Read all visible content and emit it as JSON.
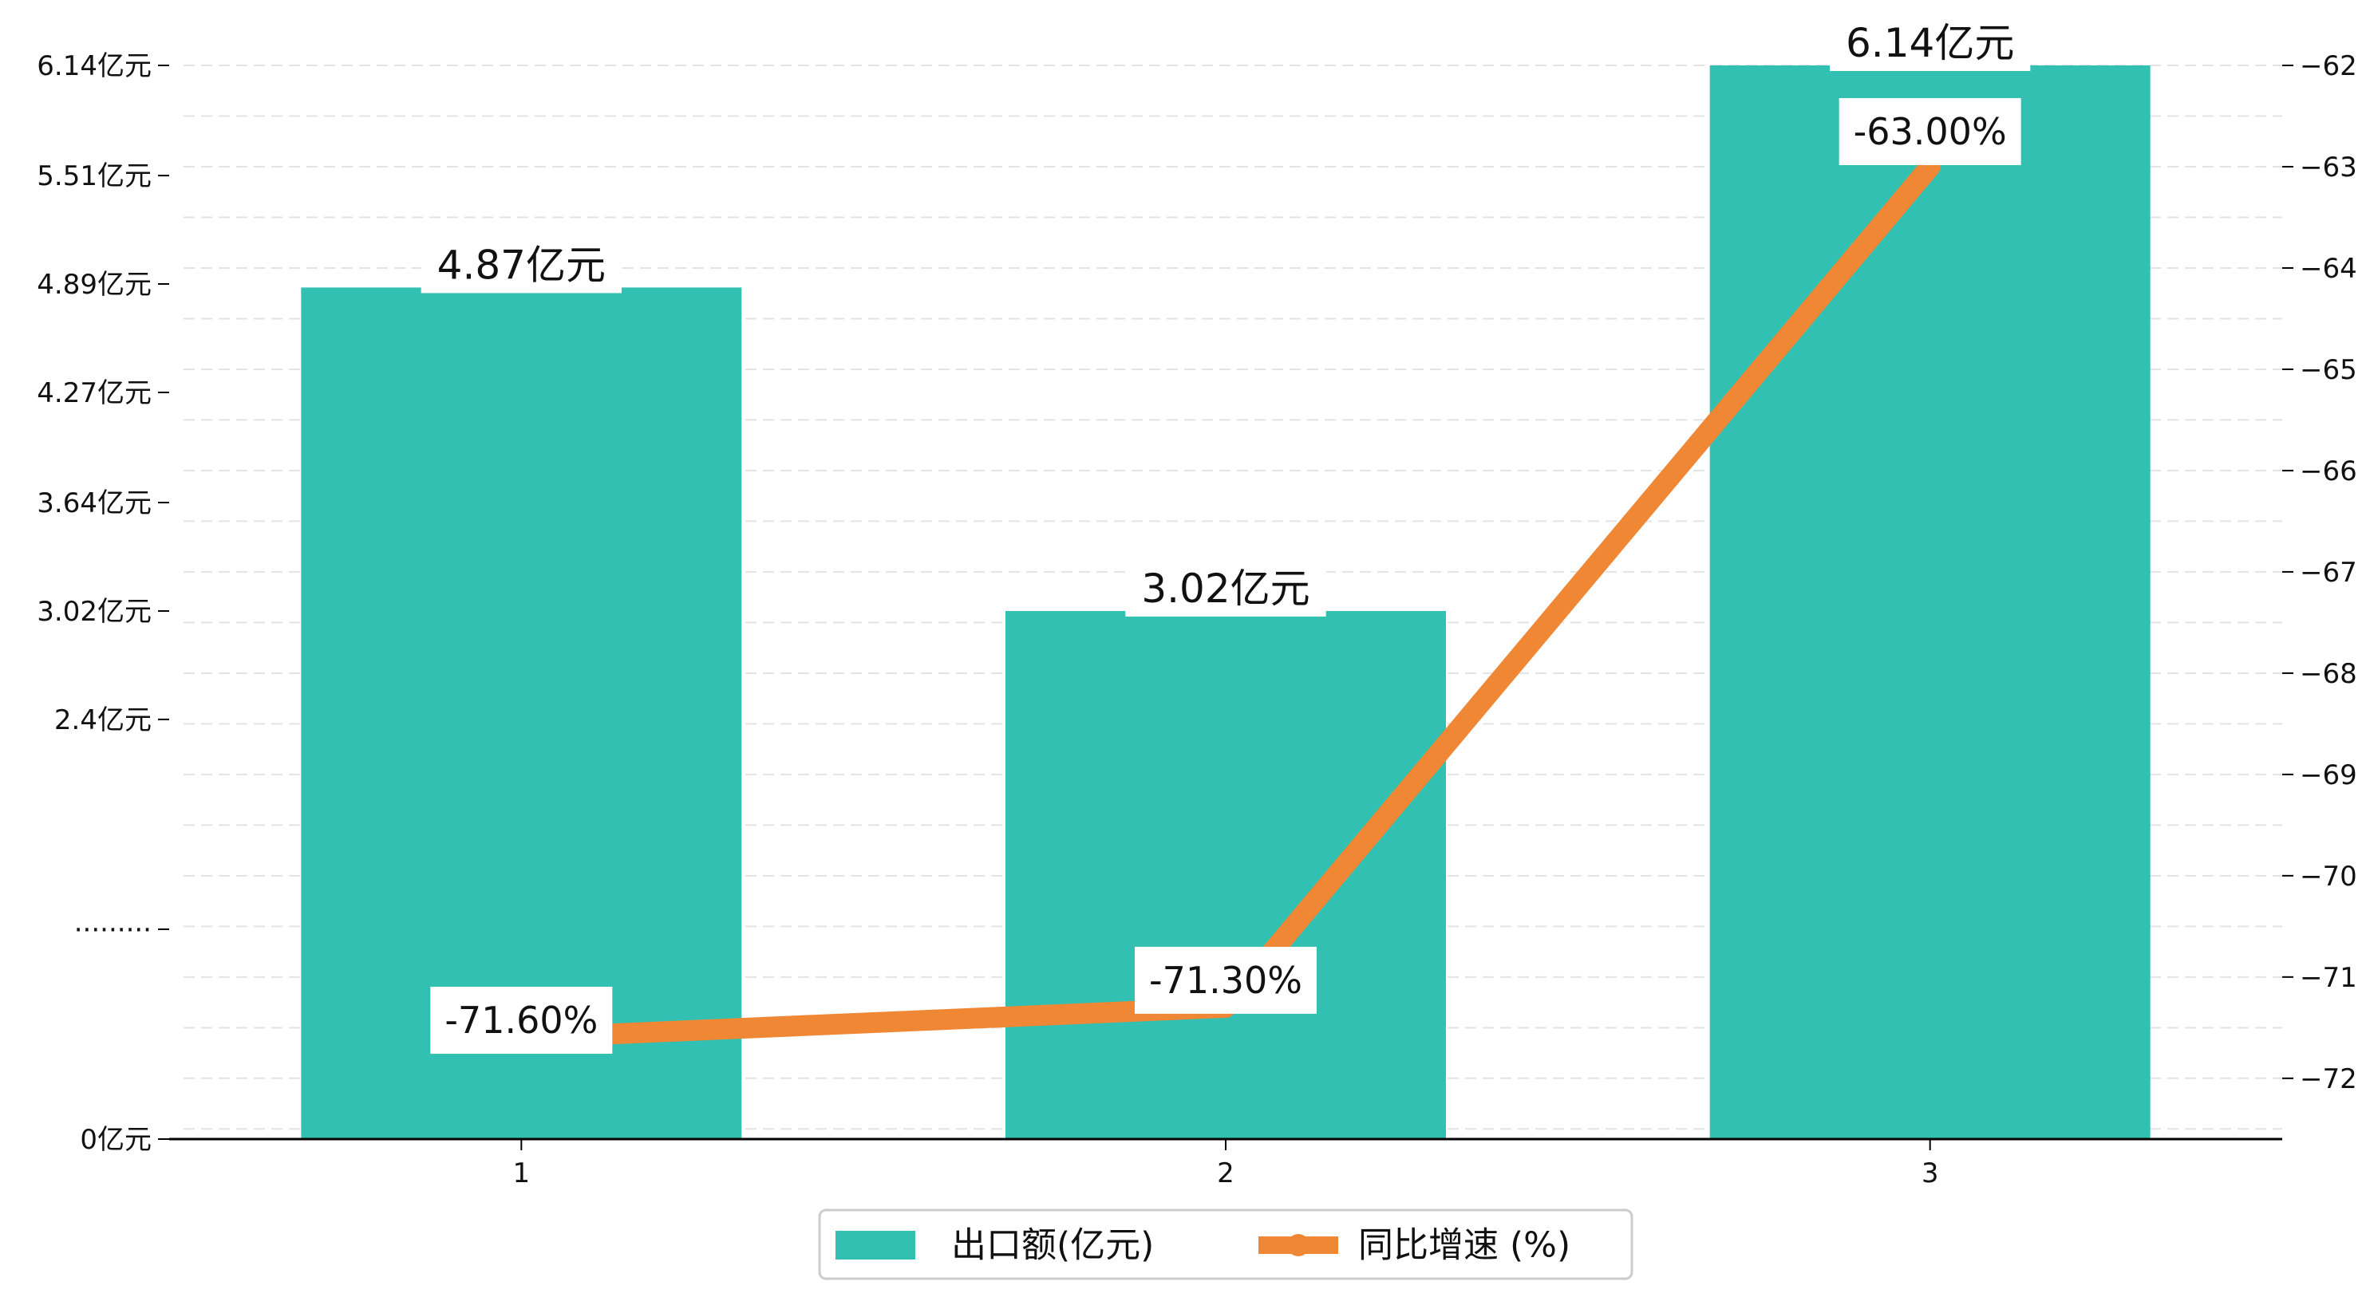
{
  "chart_data": {
    "type": "bar",
    "categories": [
      "1",
      "2",
      "3"
    ],
    "series": [
      {
        "name": "出口额(亿元)",
        "type": "bar",
        "axis": "left",
        "values": [
          4.87,
          3.02,
          6.14
        ],
        "labels": [
          "4.87亿元",
          "3.02亿元",
          "6.14亿元"
        ],
        "color": "#32c0b2"
      },
      {
        "name": "同比增速 (%)",
        "type": "line",
        "axis": "right",
        "values": [
          -71.6,
          -71.3,
          -63.0
        ],
        "labels": [
          "-71.60%",
          "-71.30%",
          "-63.00%"
        ],
        "color": "#ef8734"
      }
    ],
    "y_left": {
      "ticks": [
        0,
        1.2,
        2.4,
        3.02,
        3.64,
        4.27,
        4.89,
        5.51,
        6.14
      ],
      "tick_labels": [
        "0亿元",
        "·········",
        "2.4亿元",
        "3.02亿元",
        "3.64亿元",
        "4.27亿元",
        "4.89亿元",
        "5.51亿元",
        "6.14亿元"
      ],
      "ylim": [
        0,
        6.14
      ]
    },
    "y_right": {
      "ticks": [
        -72,
        -71,
        -70,
        -69,
        -68,
        -67,
        -66,
        -65,
        -64,
        -63,
        -62
      ],
      "tick_labels": [
        "−72",
        "−71",
        "−70",
        "−69",
        "−68",
        "−67",
        "−66",
        "−65",
        "−64",
        "−63",
        "−62"
      ],
      "ylim": [
        -72.6,
        -62
      ]
    },
    "grid": true,
    "legend_position": "bottom-center"
  }
}
